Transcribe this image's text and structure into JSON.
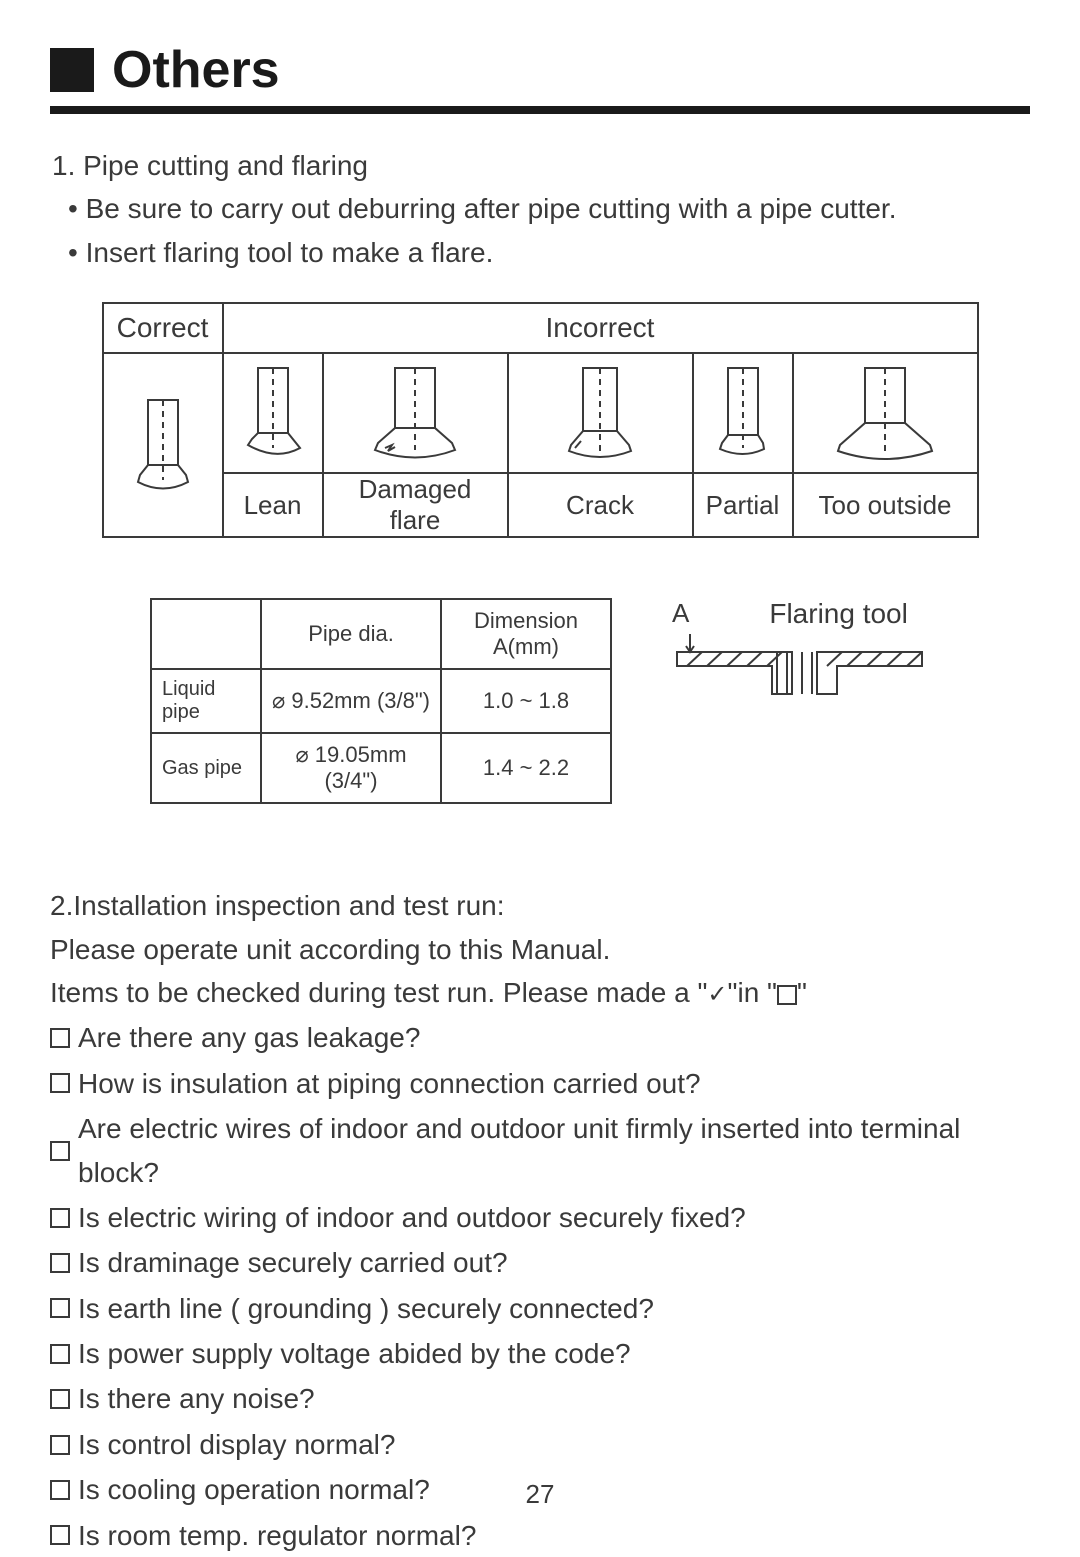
{
  "header": {
    "section_title": "Others"
  },
  "section1": {
    "num_title": "1. Pipe cutting and flaring",
    "bullet1": "Be sure to carry out deburring after pipe cutting with a pipe cutter.",
    "bullet2": "Insert flaring tool to make a flare."
  },
  "flare_table": {
    "correct_label": "Correct",
    "incorrect_label": "Incorrect",
    "captions": [
      "Lean",
      "Damaged flare",
      "Crack",
      "Partial",
      "Too outside"
    ]
  },
  "dim_table": {
    "col_pipe": "Pipe dia.",
    "col_dim": "Dimension A(mm)",
    "rows": [
      {
        "name": "Liquid pipe",
        "dia": "⌀ 9.52mm (3/8\")",
        "dim": "1.0 ~ 1.8"
      },
      {
        "name": "Gas pipe",
        "dia": "⌀ 19.05mm (3/4\")",
        "dim": "1.4 ~ 2.2"
      }
    ]
  },
  "flaring_tool": {
    "a": "A",
    "label": "Flaring tool"
  },
  "section2": {
    "title": "2.Installation inspection and test run:",
    "line1": "Please operate unit according to this Manual.",
    "line2a": "Items to be checked during test run. Please made a \"",
    "line2b": "\"in \"",
    "line2c": "\"",
    "items": [
      "Are there any gas leakage?",
      "How is insulation at piping connection carried out?",
      "Are electric wires of indoor and outdoor unit firmly inserted into terminal block?",
      "Is electric wiring of indoor and outdoor securely fixed?",
      "Is draminage securely carried out?",
      "Is earth line ( grounding ) securely connected?",
      "Is power supply voltage abided by the code?",
      "Is there any noise?",
      "Is control display normal?",
      "Is cooling operation normal?",
      "Is room temp. regulator normal?"
    ]
  },
  "page_number": "27",
  "colors": {
    "text": "#3a3a3a",
    "rule": "#1a1a1a",
    "bg": "#ffffff"
  }
}
